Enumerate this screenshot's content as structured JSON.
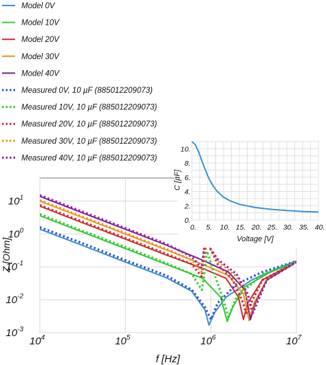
{
  "chart_data": [
    {
      "type": "line",
      "xlabel": "f [Hz]",
      "ylabel": "Z [Ohm]",
      "xscale": "log",
      "yscale": "log",
      "xlim": [
        10000,
        10000000
      ],
      "ylim": [
        0.001,
        50
      ],
      "grid": true,
      "legend_position": "top-left, outside plot",
      "x_ticks": [
        {
          "value": 10000,
          "base": "10",
          "exp": "4"
        },
        {
          "value": 100000,
          "base": "10",
          "exp": "5"
        },
        {
          "value": 1000000,
          "base": "10",
          "exp": "6"
        },
        {
          "value": 10000000,
          "base": "10",
          "exp": "7"
        }
      ],
      "y_ticks": [
        {
          "value": 0.001,
          "base": "10",
          "exp": "-3"
        },
        {
          "value": 0.01,
          "base": "10",
          "exp": "-2"
        },
        {
          "value": 0.1,
          "base": "10",
          "exp": "-1"
        },
        {
          "value": 1,
          "base": "10",
          "exp": "0"
        },
        {
          "value": 10,
          "base": "10",
          "exp": "1"
        }
      ],
      "series": [
        {
          "name": "Model 0V",
          "color": "#3a8fd4",
          "style": "solid",
          "x": [
            10000,
            30000,
            100000,
            300000,
            600000,
            850000,
            950000,
            1100000,
            1500000,
            3000000,
            6000000,
            10000000
          ],
          "y": [
            1.4,
            0.47,
            0.14,
            0.047,
            0.018,
            0.005,
            0.0017,
            0.004,
            0.012,
            0.04,
            0.09,
            0.15
          ]
        },
        {
          "name": "Model 10V",
          "color": "#2ecc2e",
          "style": "solid",
          "x": [
            10000,
            30000,
            100000,
            300000,
            800000,
            1300000,
            1550000,
            1800000,
            2500000,
            5000000,
            10000000
          ],
          "y": [
            3.6,
            1.2,
            0.36,
            0.12,
            0.045,
            0.012,
            0.0022,
            0.006,
            0.025,
            0.07,
            0.14
          ]
        },
        {
          "name": "Model 20V",
          "color": "#d0292c",
          "style": "solid",
          "x": [
            10000,
            30000,
            100000,
            300000,
            800000,
            1500000,
            2100000,
            2400000,
            2700000,
            4000000,
            10000000
          ],
          "y": [
            7,
            2.3,
            0.7,
            0.23,
            0.09,
            0.045,
            0.012,
            0.0025,
            0.008,
            0.04,
            0.14
          ]
        },
        {
          "name": "Model 30V",
          "color": "#f0901a",
          "style": "solid",
          "x": [
            10000,
            30000,
            100000,
            300000,
            800000,
            1600000,
            2400000,
            2800000,
            3200000,
            4500000,
            10000000
          ],
          "y": [
            10,
            3.3,
            1,
            0.33,
            0.12,
            0.055,
            0.015,
            0.0023,
            0.008,
            0.04,
            0.14
          ]
        },
        {
          "name": "Model 40V",
          "color": "#7a1a8c",
          "style": "solid",
          "x": [
            10000,
            30000,
            100000,
            300000,
            800000,
            1600000,
            2500000,
            2900000,
            3300000,
            4500000,
            10000000
          ],
          "y": [
            14,
            4.6,
            1.4,
            0.46,
            0.16,
            0.07,
            0.02,
            0.0025,
            0.008,
            0.04,
            0.14
          ]
        },
        {
          "name": "Measured 0V, 10 µF (885012209073)",
          "color": "#2a4fd0",
          "style": "dotted",
          "x": [
            10000,
            30000,
            100000,
            300000,
            600000,
            850000,
            1000000,
            1200000,
            2000000,
            4000000,
            10000000
          ],
          "y": [
            1.6,
            0.55,
            0.16,
            0.055,
            0.02,
            0.006,
            0.0025,
            0.008,
            0.03,
            0.07,
            0.15
          ]
        },
        {
          "name": "Measured 10V, 10 µF (885012209073)",
          "color": "#2ecc2e",
          "style": "dotted",
          "x": [
            10000,
            30000,
            100000,
            300000,
            600000,
            780000,
            830000,
            900000,
            1100000,
            1400000,
            1600000,
            2000000,
            4000000,
            10000000
          ],
          "y": [
            4,
            1.3,
            0.4,
            0.13,
            0.06,
            0.02,
            0.05,
            0.3,
            0.06,
            0.01,
            0.003,
            0.012,
            0.06,
            0.14
          ]
        },
        {
          "name": "Measured 20V, 10 µF (885012209073)",
          "color": "#d0292c",
          "style": "dotted",
          "x": [
            10000,
            30000,
            100000,
            300000,
            600000,
            780000,
            830000,
            900000,
            1200000,
            1800000,
            2300000,
            2600000,
            4000000,
            10000000
          ],
          "y": [
            7.5,
            2.5,
            0.75,
            0.25,
            0.12,
            0.05,
            0.2,
            0.6,
            0.12,
            0.04,
            0.01,
            0.004,
            0.04,
            0.14
          ]
        },
        {
          "name": "Measured 30V, 10 µF (885012209073)",
          "color": "#f0901a",
          "style": "dotted",
          "x": [
            10000,
            30000,
            100000,
            300000,
            600000,
            780000,
            830000,
            900000,
            1200000,
            2000000,
            2600000,
            3000000,
            4500000,
            10000000
          ],
          "y": [
            10.5,
            3.5,
            1.05,
            0.35,
            0.16,
            0.07,
            0.3,
            0.55,
            0.15,
            0.05,
            0.012,
            0.004,
            0.04,
            0.14
          ]
        },
        {
          "name": "Measured 40V, 10 µF (885012209073)",
          "color": "#9a1ab0",
          "style": "dotted",
          "x": [
            10000,
            30000,
            100000,
            300000,
            600000,
            780000,
            830000,
            900000,
            1200000,
            2000000,
            2700000,
            3100000,
            4500000,
            10000000
          ],
          "y": [
            15,
            5,
            1.5,
            0.5,
            0.2,
            0.09,
            0.35,
            0.5,
            0.17,
            0.06,
            0.015,
            0.004,
            0.04,
            0.14
          ]
        }
      ]
    },
    {
      "type": "line",
      "xlabel": "Voltage [V]",
      "ylabel": "C [µF]",
      "xlim": [
        0,
        40
      ],
      "ylim": [
        0,
        11
      ],
      "grid": true,
      "x_ticks": [
        "0.",
        "5.",
        "10.",
        "15.",
        "20.",
        "25.",
        "30.",
        "35.",
        "40."
      ],
      "y_ticks": [
        "0.",
        "2.",
        "4.",
        "6.",
        "8.",
        "10."
      ],
      "series": [
        {
          "color": "#3a8fd4",
          "x": [
            0,
            1,
            2,
            3,
            4,
            5,
            6,
            7,
            8,
            10,
            12,
            15,
            20,
            25,
            30,
            35,
            40
          ],
          "y": [
            11,
            10.6,
            9.7,
            8.5,
            7.3,
            6.2,
            5.3,
            4.6,
            4.0,
            3.2,
            2.7,
            2.2,
            1.75,
            1.5,
            1.32,
            1.2,
            1.12
          ]
        }
      ]
    }
  ]
}
